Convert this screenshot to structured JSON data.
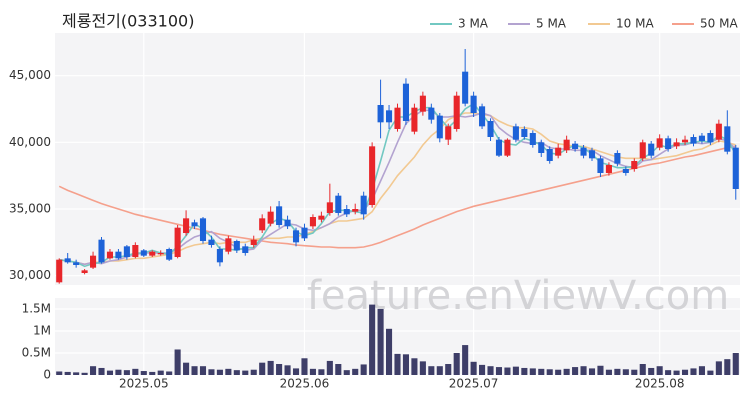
{
  "chart_data": {
    "type": "candlestick",
    "title": "제룡전기(033100)",
    "watermark": "feature.enViewV.com",
    "categories": [
      null,
      null,
      null,
      null,
      null,
      null,
      null,
      null,
      null,
      null,
      "2025.05",
      null,
      null,
      null,
      null,
      null,
      null,
      null,
      null,
      null,
      null,
      null,
      null,
      null,
      null,
      null,
      null,
      null,
      null,
      "2025.06",
      null,
      null,
      null,
      null,
      null,
      null,
      null,
      null,
      null,
      null,
      null,
      null,
      null,
      null,
      null,
      null,
      null,
      null,
      null,
      "2025.07",
      null,
      null,
      null,
      null,
      null,
      null,
      null,
      null,
      null,
      null,
      null,
      null,
      null,
      null,
      null,
      null,
      null,
      null,
      null,
      null,
      null,
      "2025.08",
      null,
      null,
      null,
      null,
      null,
      null,
      null,
      null,
      null
    ],
    "candles": {
      "open": [
        29500,
        31300,
        31000,
        30200,
        30600,
        32700,
        31300,
        31800,
        32200,
        31400,
        31900,
        31500,
        31600,
        32000,
        31400,
        33200,
        34000,
        34300,
        32700,
        32000,
        31800,
        32600,
        32200,
        32300,
        33400,
        33900,
        35200,
        34200,
        33400,
        33600,
        33700,
        34200,
        34700,
        36000,
        35000,
        34800,
        36000,
        35300,
        42800,
        42400,
        41000,
        44400,
        40800,
        42300,
        42600,
        42000,
        40200,
        41000,
        45300,
        43500,
        42700,
        41600,
        40200,
        39000,
        41200,
        41000,
        40700,
        40000,
        39500,
        39000,
        39400,
        39900,
        39600,
        39400,
        38800,
        37700,
        39200,
        38000,
        38000,
        38800,
        39900,
        39600,
        40300,
        39700,
        40000,
        40400,
        40500,
        40700,
        40200,
        41200,
        39600
      ],
      "high": [
        31300,
        31700,
        31200,
        30500,
        31800,
        32900,
        32000,
        32000,
        32300,
        32500,
        32000,
        31900,
        31900,
        32100,
        33800,
        34900,
        34200,
        34400,
        33000,
        32200,
        33000,
        32700,
        32400,
        33000,
        34600,
        35200,
        35600,
        34500,
        33600,
        33900,
        34600,
        34800,
        36900,
        36200,
        35300,
        35400,
        36300,
        40000,
        44700,
        42800,
        42900,
        44800,
        42900,
        43800,
        42900,
        42200,
        41400,
        43800,
        47000,
        43800,
        42900,
        41800,
        40400,
        40300,
        41400,
        41200,
        40900,
        40200,
        39700,
        39900,
        40500,
        40100,
        39800,
        39600,
        39000,
        38500,
        39400,
        38200,
        38800,
        40200,
        40100,
        40600,
        40500,
        40300,
        40500,
        40600,
        40700,
        40900,
        41700,
        42400,
        39800
      ],
      "low": [
        29400,
        30900,
        30600,
        30100,
        30500,
        30900,
        31200,
        31200,
        31200,
        31300,
        31400,
        31400,
        31500,
        31100,
        31300,
        33000,
        33500,
        32400,
        32100,
        30700,
        31600,
        31700,
        31500,
        32100,
        33200,
        33700,
        33600,
        33500,
        32200,
        32600,
        33500,
        34000,
        34500,
        34500,
        34400,
        34600,
        34200,
        35100,
        40300,
        41000,
        40800,
        41300,
        40600,
        42000,
        41400,
        40000,
        39800,
        40800,
        42700,
        41900,
        41000,
        40100,
        38900,
        38900,
        40000,
        40200,
        39600,
        38900,
        38400,
        38800,
        39200,
        39300,
        38800,
        38600,
        37400,
        37500,
        38200,
        37500,
        37800,
        38600,
        38800,
        39400,
        39300,
        39500,
        39800,
        39700,
        39900,
        39800,
        40000,
        39100,
        35700
      ],
      "close": [
        31200,
        31000,
        30800,
        30400,
        31500,
        31000,
        31800,
        31300,
        31400,
        32300,
        31500,
        31800,
        31700,
        31200,
        33600,
        34300,
        33700,
        32600,
        32300,
        31000,
        32800,
        31900,
        31700,
        32700,
        34300,
        34800,
        33800,
        33700,
        32500,
        32800,
        34400,
        34500,
        35500,
        34700,
        34600,
        35000,
        34600,
        39700,
        41500,
        41500,
        42600,
        41600,
        42600,
        43500,
        41700,
        40300,
        41200,
        43500,
        42900,
        42200,
        41200,
        40400,
        39000,
        40200,
        40200,
        40400,
        39800,
        39200,
        38600,
        39600,
        40200,
        39500,
        39000,
        38800,
        37700,
        38300,
        38400,
        37700,
        38600,
        40000,
        39000,
        40300,
        39500,
        40000,
        40200,
        39900,
        40100,
        40000,
        41400,
        39300,
        36500
      ],
      "up_color": "#e8262a",
      "down_color": "#1d62d8"
    },
    "series": [
      {
        "name": "3 MA",
        "color": "#72c8c2",
        "values": [
          31200,
          31100,
          31000,
          30700,
          30900,
          31000,
          31400,
          31400,
          31500,
          31700,
          31700,
          31900,
          31700,
          31600,
          32200,
          33000,
          33900,
          33500,
          32900,
          32000,
          32000,
          31900,
          32100,
          32100,
          32900,
          33900,
          34300,
          34100,
          33300,
          33000,
          33200,
          33900,
          34800,
          34900,
          34900,
          34800,
          34700,
          36400,
          38600,
          40900,
          41900,
          41900,
          42300,
          42600,
          42600,
          41800,
          41100,
          41700,
          42500,
          42900,
          42100,
          41300,
          40200,
          39900,
          39800,
          40300,
          40100,
          39800,
          39200,
          39100,
          39500,
          39800,
          39600,
          39100,
          38500,
          38300,
          38100,
          38100,
          38200,
          38800,
          39200,
          39800,
          39600,
          39900,
          39900,
          40000,
          40100,
          40000,
          40500,
          40200,
          39100
        ]
      },
      {
        "name": "5 MA",
        "color": "#b3a3d0",
        "values": [
          31200,
          31100,
          31000,
          30850,
          31000,
          30900,
          31100,
          31200,
          31400,
          31600,
          31700,
          31700,
          31700,
          31700,
          32000,
          32500,
          32900,
          33100,
          33300,
          32800,
          32500,
          32100,
          31900,
          32000,
          32700,
          33100,
          33500,
          33900,
          33800,
          33500,
          33400,
          33600,
          33900,
          34400,
          34700,
          34900,
          34900,
          35700,
          37100,
          38500,
          40000,
          41400,
          42000,
          42400,
          42400,
          41900,
          41900,
          42000,
          41900,
          42000,
          42200,
          42000,
          41100,
          40600,
          40200,
          40000,
          39900,
          40000,
          39600,
          39500,
          39500,
          39400,
          39400,
          39400,
          39000,
          38700,
          38400,
          38200,
          38100,
          38600,
          38700,
          39100,
          39500,
          39800,
          39800,
          40000,
          39900,
          40000,
          40300,
          40100,
          39500
        ]
      },
      {
        "name": "10 MA",
        "color": "#f2c992",
        "values": [
          31200,
          31100,
          31000,
          30850,
          31000,
          31000,
          31100,
          31100,
          31200,
          31300,
          31300,
          31400,
          31500,
          31600,
          31800,
          32100,
          32300,
          32400,
          32500,
          32400,
          32500,
          32500,
          32500,
          32700,
          32800,
          32800,
          32800,
          32900,
          32900,
          33100,
          33300,
          33600,
          33900,
          34100,
          34100,
          34200,
          34300,
          34800,
          35800,
          36600,
          37500,
          38200,
          38900,
          39800,
          40500,
          41000,
          41700,
          42000,
          42200,
          42200,
          42100,
          42000,
          41600,
          41300,
          41100,
          41100,
          41000,
          40600,
          40100,
          39900,
          39800,
          39700,
          39700,
          39500,
          39300,
          39100,
          38900,
          38800,
          38800,
          38800,
          38700,
          38800,
          38900,
          39000,
          39200,
          39400,
          39500,
          39800,
          40100,
          40000,
          39800
        ]
      },
      {
        "name": "50 MA",
        "color": "#f5a08c",
        "values": [
          36700,
          36400,
          36150,
          35900,
          35650,
          35400,
          35200,
          35000,
          34800,
          34600,
          34450,
          34300,
          34150,
          34000,
          33850,
          33700,
          33550,
          33400,
          33250,
          33100,
          33000,
          32900,
          32800,
          32700,
          32600,
          32500,
          32450,
          32400,
          32300,
          32250,
          32200,
          32150,
          32150,
          32100,
          32100,
          32100,
          32150,
          32300,
          32500,
          32750,
          33000,
          33250,
          33500,
          33800,
          34050,
          34300,
          34550,
          34800,
          35000,
          35200,
          35350,
          35500,
          35650,
          35800,
          35950,
          36100,
          36250,
          36400,
          36550,
          36700,
          36850,
          37000,
          37150,
          37300,
          37450,
          37600,
          37750,
          37900,
          38050,
          38200,
          38350,
          38450,
          38600,
          38750,
          38900,
          39000,
          39150,
          39300,
          39450,
          39600,
          39700
        ]
      }
    ],
    "ylim": [
      29300,
      48200
    ],
    "yticks": [
      {
        "value": 30000,
        "label": "30,000"
      },
      {
        "value": 35000,
        "label": "35,000"
      },
      {
        "value": 40000,
        "label": "40,000"
      },
      {
        "value": 45000,
        "label": "45,000"
      }
    ],
    "grid": true,
    "legend": "top-right",
    "volume": {
      "color": "#3e3e68",
      "values": [
        80000,
        70000,
        60000,
        50000,
        200000,
        160000,
        100000,
        120000,
        110000,
        140000,
        90000,
        70000,
        100000,
        80000,
        580000,
        280000,
        200000,
        200000,
        130000,
        120000,
        140000,
        110000,
        100000,
        120000,
        280000,
        320000,
        250000,
        220000,
        150000,
        380000,
        140000,
        130000,
        320000,
        250000,
        110000,
        140000,
        240000,
        1600000,
        1500000,
        1050000,
        480000,
        470000,
        380000,
        310000,
        200000,
        200000,
        250000,
        500000,
        680000,
        300000,
        230000,
        200000,
        180000,
        170000,
        190000,
        160000,
        150000,
        140000,
        130000,
        120000,
        140000,
        180000,
        200000,
        150000,
        210000,
        120000,
        140000,
        130000,
        120000,
        250000,
        160000,
        200000,
        110000,
        100000,
        120000,
        150000,
        200000,
        100000,
        310000,
        360000,
        500000
      ],
      "ylim": [
        0,
        1750000
      ],
      "yticks": [
        0,
        {
          "value": 500000,
          "label": "0.5M"
        },
        {
          "value": 1000000,
          "label": "1M"
        },
        {
          "value": 1500000,
          "label": "1.5M"
        }
      ]
    }
  }
}
